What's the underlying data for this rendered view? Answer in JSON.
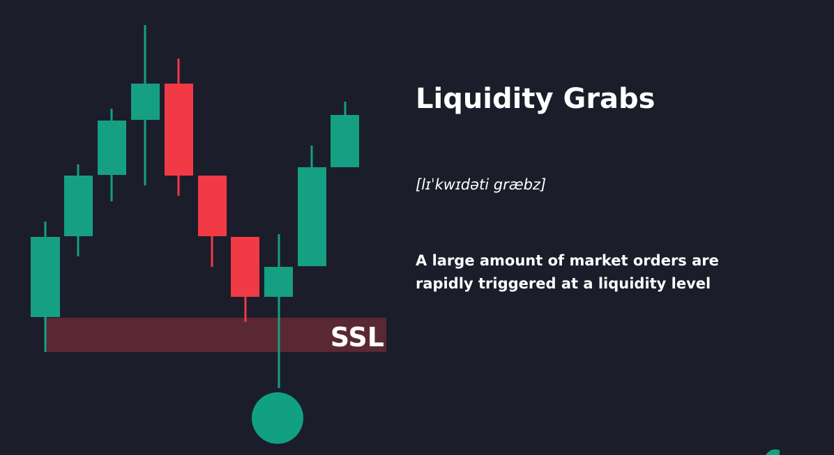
{
  "title": "Liquidity Grabs",
  "pronunciation": "[lɪˈkwɪdəti græbz]",
  "description": [
    "A large amount of market orders are",
    "rapidly triggered at a liquidity level"
  ],
  "level_label": "SSL"
}
